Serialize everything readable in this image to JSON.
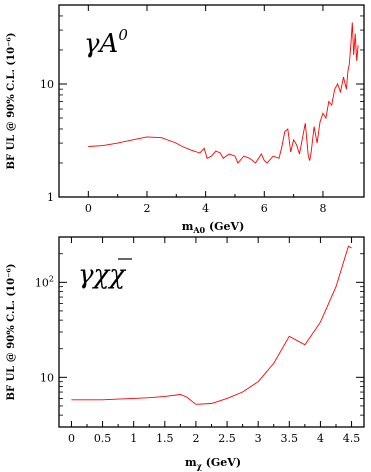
{
  "chart_data": [
    {
      "type": "line",
      "title": "γA⁰",
      "xlabel": "m_A0 (GeV)",
      "xlabel_main": "m",
      "xlabel_sub": "A0",
      "xlabel_unit": " (GeV)",
      "ylabel": "BF UL @ 90% C.L. (10⁻⁶)",
      "yscale": "log",
      "xlim": [
        -1,
        9.4
      ],
      "ylim": [
        1,
        50
      ],
      "xticks": [
        0,
        2,
        4,
        6,
        8
      ],
      "yticks": [
        1,
        10
      ],
      "color": "#ff0000",
      "series": [
        {
          "x": [
            0,
            0.5,
            1,
            1.5,
            2,
            2.5,
            3,
            3.2,
            3.5,
            3.8,
            3.95,
            4.05,
            4.2,
            4.35,
            4.5,
            4.6,
            4.8,
            5.0,
            5.1,
            5.3,
            5.5,
            5.7,
            5.9,
            6.0,
            6.1,
            6.3,
            6.5,
            6.6,
            6.7,
            6.8,
            6.9,
            7.0,
            7.1,
            7.2,
            7.3,
            7.4,
            7.5,
            7.55,
            7.6,
            7.7,
            7.8,
            7.9,
            8.0,
            8.1,
            8.2,
            8.3,
            8.4,
            8.5,
            8.6,
            8.7,
            8.8,
            8.85,
            8.9,
            8.95,
            9.0,
            9.05,
            9.1,
            9.15,
            9.2
          ],
          "y": [
            2.8,
            2.85,
            3.0,
            3.2,
            3.4,
            3.35,
            3.0,
            2.8,
            2.6,
            2.45,
            2.7,
            2.2,
            2.3,
            2.55,
            2.45,
            2.2,
            2.4,
            2.3,
            2.0,
            2.3,
            2.2,
            2.0,
            2.4,
            2.1,
            2.0,
            2.3,
            2.2,
            2.8,
            3.8,
            4.0,
            2.5,
            3.2,
            2.9,
            2.4,
            3.3,
            4.5,
            2.3,
            2.1,
            2.5,
            4.2,
            3.0,
            4.6,
            5.5,
            5.0,
            7.0,
            6.5,
            9.0,
            10.0,
            8.5,
            11.5,
            9.0,
            13,
            15,
            22,
            35,
            18,
            28,
            16,
            22
          ]
        }
      ]
    },
    {
      "type": "line",
      "title": "γχχ̄",
      "xlabel": "m_χ (GeV)",
      "xlabel_main": "m",
      "xlabel_sub": "χ",
      "xlabel_unit": " (GeV)",
      "ylabel": "BF UL @ 90% C.L. (10⁻⁶)",
      "yscale": "log",
      "xlim": [
        -0.2,
        4.7
      ],
      "ylim": [
        3,
        300
      ],
      "xticks": [
        0,
        0.5,
        1,
        1.5,
        2,
        2.5,
        3,
        3.5,
        4,
        4.5
      ],
      "yticks": [
        10,
        100
      ],
      "color": "#ff0000",
      "series": [
        {
          "x": [
            0,
            0.25,
            0.5,
            0.75,
            1.0,
            1.25,
            1.5,
            1.75,
            1.85,
            2.0,
            2.25,
            2.5,
            2.75,
            3.0,
            3.25,
            3.5,
            3.75,
            4.0,
            4.25,
            4.45,
            4.5
          ],
          "y": [
            5.8,
            5.8,
            5.8,
            5.9,
            6.0,
            6.1,
            6.3,
            6.6,
            6.2,
            5.2,
            5.3,
            6.0,
            7.0,
            9.0,
            14,
            27,
            22,
            38,
            90,
            240,
            230
          ]
        }
      ]
    }
  ]
}
